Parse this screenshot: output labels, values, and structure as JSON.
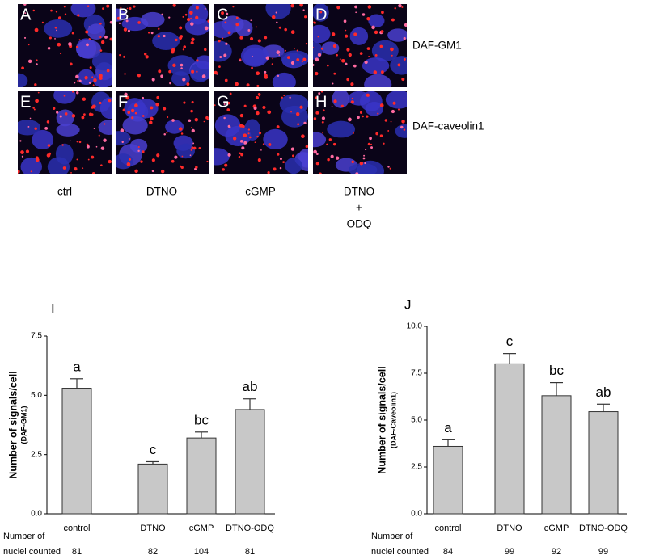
{
  "micrographs": {
    "panels": [
      "A",
      "B",
      "C",
      "D",
      "E",
      "F",
      "G",
      "H"
    ],
    "rows": [
      "DAF-GM1",
      "DAF-caveolin1"
    ],
    "columns": [
      [
        "ctrl"
      ],
      [
        "DTNO"
      ],
      [
        "cGMP"
      ],
      [
        "DTNO",
        "+",
        "ODQ"
      ]
    ]
  },
  "chart_data": [
    {
      "type": "bar",
      "title": "I",
      "ylabel": "Number of signals/cell",
      "ylabel_sub": "(DAF-GM1)",
      "categories": [
        "control",
        "DTNO",
        "cGMP",
        "DTNO-ODQ"
      ],
      "values": [
        5.3,
        2.1,
        3.2,
        4.4
      ],
      "errors": [
        0.4,
        0.1,
        0.25,
        0.45
      ],
      "annotations": [
        "a",
        "c",
        "bc",
        "ab"
      ],
      "color": "#c8c8c8",
      "ylim": [
        0,
        7.5
      ],
      "yticks": [
        {
          "value": 0,
          "label": "0.0"
        },
        {
          "value": 2.5,
          "label": "2.5"
        },
        {
          "value": 5,
          "label": "5.0"
        },
        {
          "value": 7.5,
          "label": "7.5"
        }
      ],
      "nuclei_label": [
        "Number of",
        "nuclei counted"
      ],
      "nuclei_counted": [
        81,
        82,
        104,
        81
      ]
    },
    {
      "type": "bar",
      "title": "J",
      "ylabel": "Number of signals/cell",
      "ylabel_sub": "(DAF-Caveolin1)",
      "categories": [
        "control",
        "DTNO",
        "cGMP",
        "DTNO-ODQ"
      ],
      "values": [
        3.6,
        8.0,
        6.3,
        5.45
      ],
      "errors": [
        0.35,
        0.55,
        0.7,
        0.4
      ],
      "annotations": [
        "a",
        "c",
        "bc",
        "ab"
      ],
      "color": "#c8c8c8",
      "ylim": [
        0,
        10
      ],
      "yticks": [
        {
          "value": 0,
          "label": "0.0"
        },
        {
          "value": 2.5,
          "label": "2.5"
        },
        {
          "value": 5,
          "label": "5.0"
        },
        {
          "value": 7.5,
          "label": "7.5"
        },
        {
          "value": 10,
          "label": "10.0"
        }
      ],
      "nuclei_label": [
        "Number of",
        "nuclei counted"
      ],
      "nuclei_counted": [
        84,
        99,
        92,
        99
      ]
    }
  ]
}
